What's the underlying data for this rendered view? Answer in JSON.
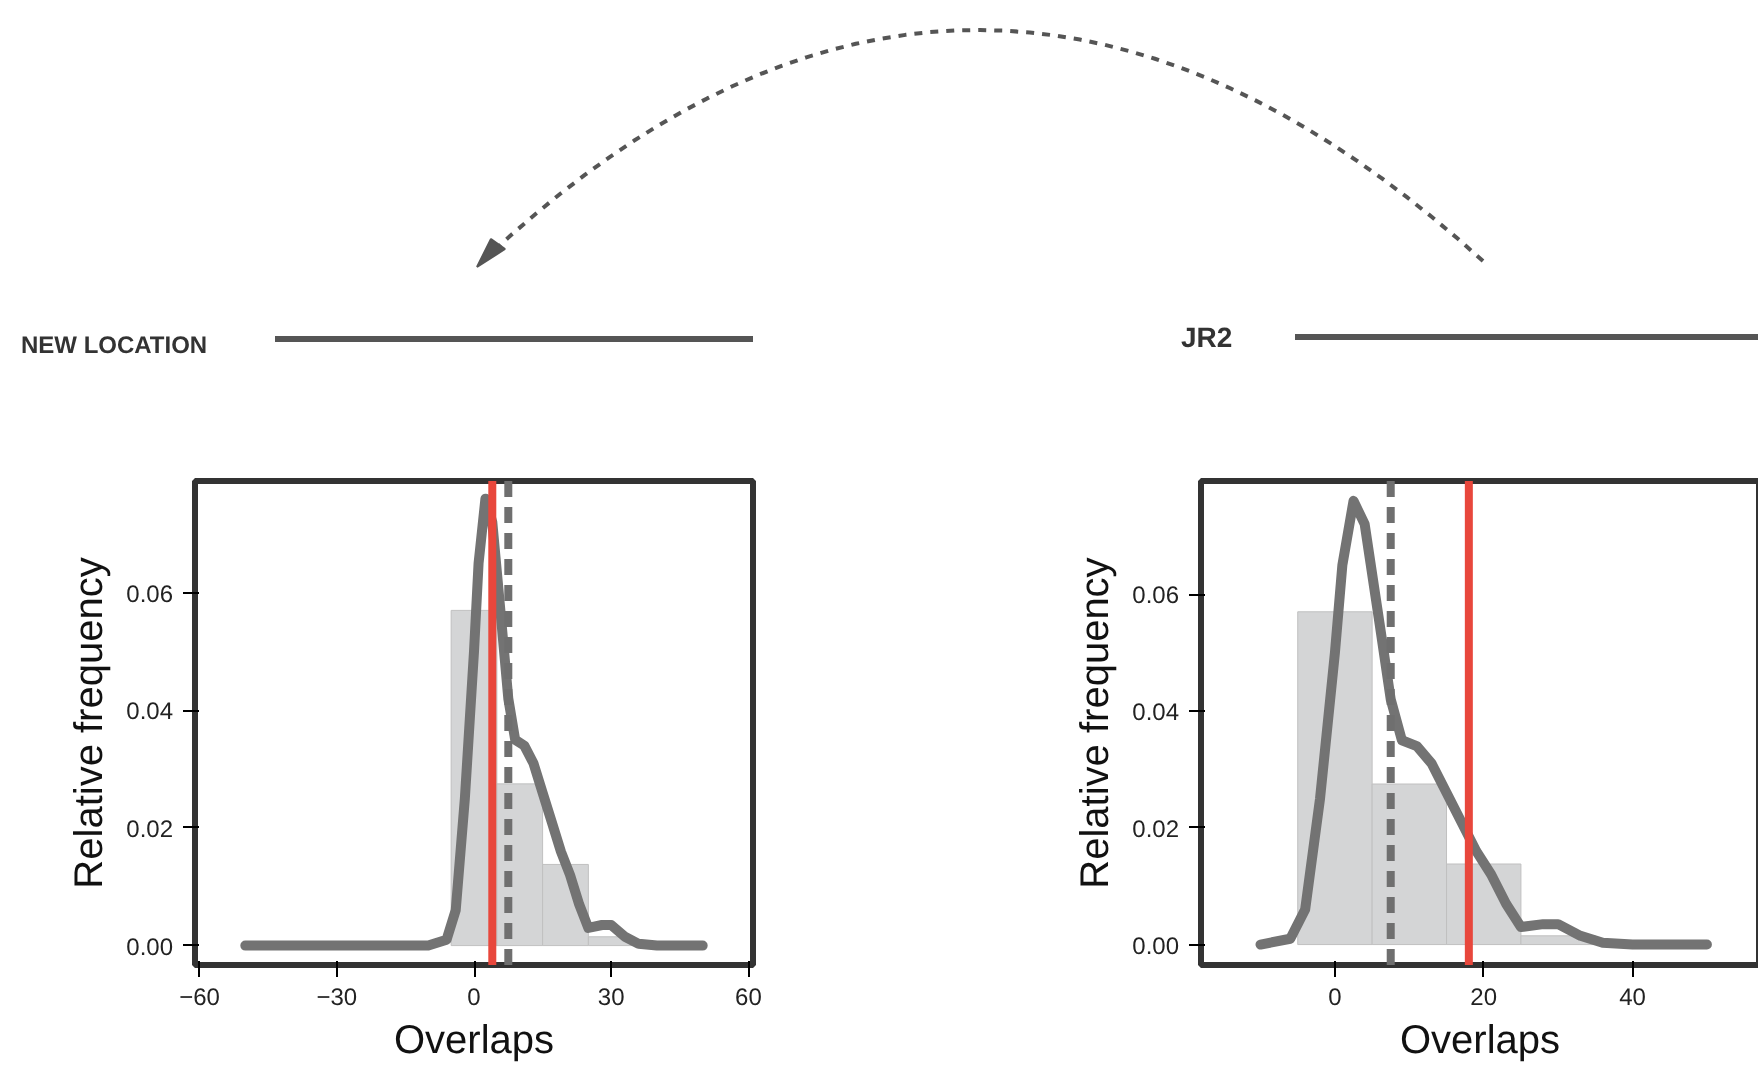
{
  "chart_data": [
    {
      "type": "histogram",
      "annotations": [
        "NEW LOCATION"
      ],
      "xlabel": "Overlaps",
      "ylabel": "Relative frequency",
      "bins": [
        -5,
        5,
        15,
        25,
        35
      ],
      "values": [
        0.057,
        0.0275,
        0.0138,
        0.0015
      ],
      "color": "#d4d5d6",
      "series": [
        {
          "type": "line",
          "color": "#737373",
          "x": [
            -50,
            -30,
            -10,
            -6,
            -4,
            -2,
            0,
            1,
            2.5,
            4,
            6,
            7.5,
            9,
            11,
            13,
            15,
            17,
            19,
            21,
            23,
            25,
            28,
            30,
            33,
            36,
            40,
            50
          ],
          "values": [
            0,
            0,
            0,
            0.001,
            0.006,
            0.025,
            0.05,
            0.065,
            0.076,
            0.072,
            0.055,
            0.042,
            0.035,
            0.034,
            0.031,
            0.026,
            0.021,
            0.016,
            0.012,
            0.007,
            0.003,
            0.0035,
            0.0035,
            0.0015,
            0.0003,
            0,
            0
          ]
        }
      ],
      "ref_lines": [
        {
          "axis": "x",
          "value": 4,
          "color": "#e8473c",
          "line_style": "solid"
        },
        {
          "axis": "x",
          "value": 7.5,
          "color": "#6f6f6f",
          "line_style": "dashed"
        }
      ],
      "xlim": [
        -61,
        61
      ],
      "xticks": [
        {
          "value": -60,
          "label": "−60"
        },
        {
          "value": -30,
          "label": "−30"
        },
        0,
        30,
        60
      ],
      "ylim": [
        -0.0033,
        0.079
      ],
      "yticks": [
        {
          "value": 0,
          "label": "0.00"
        },
        {
          "value": 0.02,
          "label": "0.02"
        },
        {
          "value": 0.04,
          "label": "0.04"
        },
        {
          "value": 0.06,
          "label": "0.06"
        }
      ],
      "grid": false
    },
    {
      "type": "histogram",
      "annotations": [
        "JR2"
      ],
      "xlabel": "Overlaps",
      "ylabel": "Relative frequency",
      "bins": [
        -5,
        5,
        15,
        25,
        35
      ],
      "values": [
        0.057,
        0.0275,
        0.0138,
        0.0015
      ],
      "color": "#d4d5d6",
      "series": [
        {
          "type": "line",
          "color": "#737373",
          "x": [
            -10,
            -6,
            -4,
            -2,
            0,
            1,
            2.5,
            4,
            6,
            7.5,
            9,
            11,
            13,
            15,
            17,
            19,
            21,
            23,
            25,
            28,
            30,
            33,
            36,
            40,
            50
          ],
          "values": [
            0,
            0.001,
            0.006,
            0.025,
            0.05,
            0.065,
            0.076,
            0.072,
            0.055,
            0.042,
            0.035,
            0.034,
            0.031,
            0.026,
            0.021,
            0.016,
            0.012,
            0.007,
            0.003,
            0.0035,
            0.0035,
            0.0015,
            0.0003,
            0,
            0
          ]
        }
      ],
      "ref_lines": [
        {
          "axis": "x",
          "value": 18,
          "color": "#e8473c",
          "line_style": "solid"
        },
        {
          "axis": "x",
          "value": 7.5,
          "color": "#6f6f6f",
          "line_style": "dashed"
        }
      ],
      "xlim": [
        -18,
        57
      ],
      "xticks": [
        0,
        20,
        40
      ],
      "ylim": [
        -0.0035,
        0.0794
      ],
      "yticks": [
        {
          "value": 0,
          "label": "0.00"
        },
        {
          "value": 0.02,
          "label": "0.02"
        },
        {
          "value": 0.04,
          "label": "0.04"
        },
        {
          "value": 0.06,
          "label": "0.06"
        }
      ],
      "grid": false
    }
  ]
}
